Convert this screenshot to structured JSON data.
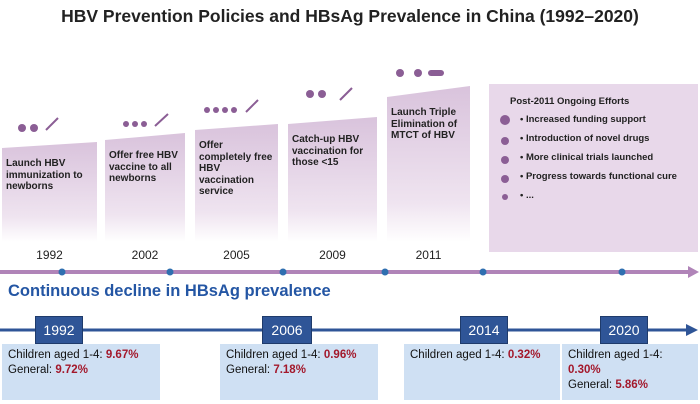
{
  "header": {
    "title": "HBV Prevention Policies and HBsAg Prevalence in China (1992–2020)"
  },
  "policies": [
    {
      "year": "1992",
      "text": "Launch HBV immunization to newborns"
    },
    {
      "year": "2002",
      "text": "Offer free HBV vaccine to all newborns"
    },
    {
      "year": "2005",
      "text": "Offer completely free HBV vaccination service"
    },
    {
      "year": "2009",
      "text": "Catch-up HBV vaccination for those <15"
    },
    {
      "year": "2011",
      "text": "Launch Triple Elimination of MTCT of HBV"
    }
  ],
  "ongoing": {
    "title": "Post-2011 Ongoing Efforts",
    "items": [
      "Increased funding support",
      "Introduction of novel drugs",
      "More clinical trials launched",
      "Progress towards functional cure",
      "..."
    ]
  },
  "prevalence": {
    "heading": "Continuous decline in HBsAg prevalence",
    "points": [
      {
        "year": "1992",
        "lines": [
          {
            "label": "Children aged 1-4:",
            "value": "9.67%"
          },
          {
            "label": "General:",
            "value": "9.72%"
          }
        ]
      },
      {
        "year": "2006",
        "lines": [
          {
            "label": "Children aged 1-4:",
            "value": "0.96%"
          },
          {
            "label": "General:",
            "value": "7.18%"
          }
        ]
      },
      {
        "year": "2014",
        "lines": [
          {
            "label": "Children aged 1-4:",
            "value": "0.32%"
          }
        ]
      },
      {
        "year": "2020",
        "lines": [
          {
            "label": "Children aged 1-4:",
            "value": "0.30%"
          },
          {
            "label": "General:",
            "value": "5.86%"
          }
        ]
      }
    ]
  }
}
